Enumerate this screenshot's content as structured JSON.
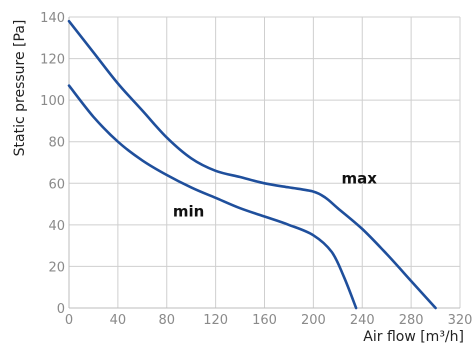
{
  "chart_data": {
    "type": "line",
    "title": "",
    "xlabel": "Air flow [m³/h]",
    "ylabel": "Static pressure [Pa]",
    "xlim": [
      0,
      320
    ],
    "ylim": [
      0,
      140
    ],
    "x_ticks": [
      0,
      40,
      80,
      120,
      160,
      200,
      240,
      280,
      320
    ],
    "y_ticks": [
      0,
      20,
      40,
      60,
      80,
      100,
      120,
      140
    ],
    "grid": true,
    "series": [
      {
        "name": "max",
        "color": "#1f4f9c",
        "x": [
          0,
          20,
          40,
          60,
          80,
          100,
          120,
          140,
          160,
          180,
          200,
          210,
          220,
          240,
          260,
          280,
          300
        ],
        "y": [
          138,
          123,
          108,
          95,
          82,
          72,
          66,
          63,
          60,
          58,
          56,
          53,
          48,
          38,
          26,
          13,
          0
        ]
      },
      {
        "name": "min",
        "color": "#1f4f9c",
        "x": [
          0,
          20,
          40,
          60,
          80,
          100,
          120,
          140,
          160,
          180,
          200,
          215,
          225,
          235
        ],
        "y": [
          107,
          92,
          80,
          71,
          64,
          58,
          53,
          48,
          44,
          40,
          35,
          27,
          15,
          0
        ]
      }
    ]
  }
}
